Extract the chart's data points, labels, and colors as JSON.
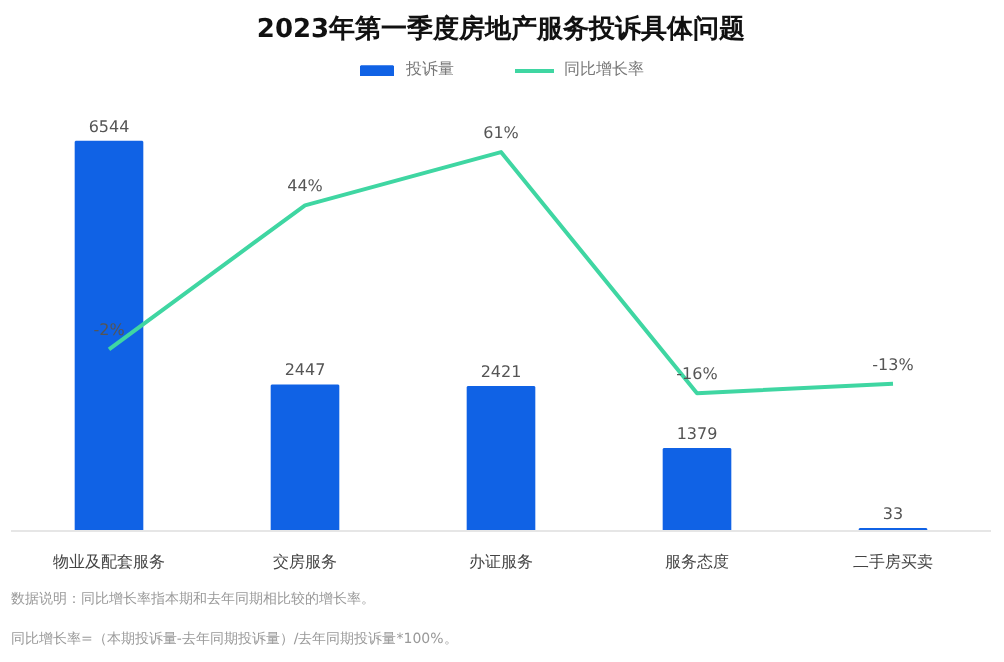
{
  "chart_data": {
    "type": "bar",
    "title": "2023年第一季度房地产服务投诉具体问题",
    "categories": [
      "物业及配套服务",
      "交房服务",
      "办证服务",
      "服务态度",
      "二手房买卖"
    ],
    "series": [
      {
        "name": "投诉量",
        "color": "#1062e5",
        "values": [
          6544,
          2447,
          2421,
          1379,
          33
        ]
      },
      {
        "name": "同比增长率",
        "type": "line",
        "axis": "y2",
        "color": "#3fd6a2",
        "values": [
          -2,
          44,
          61,
          -16,
          -13
        ],
        "value_labels": [
          "-2%",
          "44%",
          "61%",
          "-16%",
          "-13%"
        ]
      }
    ],
    "ylim": [
      0,
      8000
    ],
    "y2lim": [
      -60,
      92
    ],
    "tick_labels": "x",
    "data_labels": true,
    "legend": "top",
    "grid": false,
    "annotations": [
      "数据说明：同比增长率指本期和去年同期相比较的增长率。",
      "同比增长率=（本期投诉量-去年同期投诉量）/去年同期投诉量*100%。"
    ]
  }
}
